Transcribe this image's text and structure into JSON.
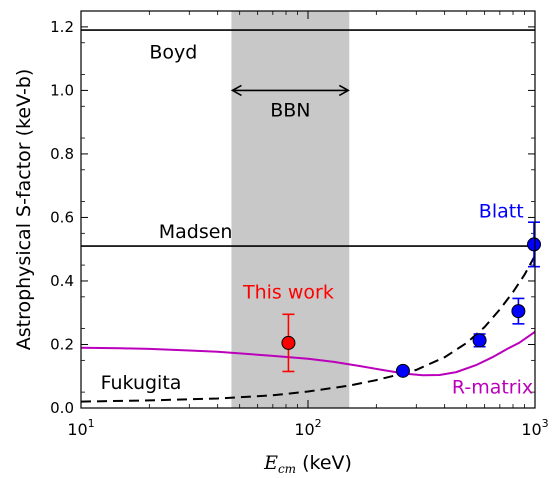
{
  "chart_data": {
    "type": "line",
    "xlabel_sym": "E",
    "xlabel_sub": "cm",
    "xlabel_unit": " (keV)",
    "ylabel": "Astrophysical S-factor (keV-b)",
    "xscale": "log",
    "xlim": [
      10,
      1000
    ],
    "ylim": [
      0,
      1.25
    ],
    "x_ticks": [
      10,
      100,
      1000
    ],
    "x_tick_labels": [
      {
        "base": "10",
        "exp": "1"
      },
      {
        "base": "10",
        "exp": "2"
      },
      {
        "base": "10",
        "exp": "3"
      }
    ],
    "y_ticks": [
      0.0,
      0.2,
      0.4,
      0.6,
      0.8,
      1.0,
      1.2
    ],
    "y_tick_labels": [
      "0.0",
      "0.2",
      "0.4",
      "0.6",
      "0.8",
      "1.0",
      "1.2"
    ],
    "shaded_band": {
      "label": "BBN",
      "x_range": [
        46,
        152
      ],
      "arrow_y": 1.0,
      "color": "#c8c8c8"
    },
    "horizontal_lines": [
      {
        "name": "Boyd",
        "y": 1.19,
        "label_x": 20,
        "label_y": 1.1
      },
      {
        "name": "Madsen",
        "y": 0.51,
        "label_x": 22,
        "label_y": 0.535
      }
    ],
    "series": [
      {
        "name": "R-matrix",
        "style": "solid",
        "color": "#bb00bb",
        "x": [
          10,
          15,
          20,
          30,
          40,
          50,
          70,
          100,
          130,
          170,
          220,
          270,
          320,
          380,
          450,
          550,
          650,
          750,
          850,
          1000
        ],
        "y": [
          0.19,
          0.188,
          0.186,
          0.181,
          0.177,
          0.172,
          0.164,
          0.155,
          0.145,
          0.132,
          0.118,
          0.108,
          0.103,
          0.104,
          0.113,
          0.135,
          0.16,
          0.185,
          0.205,
          0.24
        ]
      },
      {
        "name": "Fukugita",
        "style": "dashed",
        "color": "#000000",
        "x": [
          10,
          20,
          40,
          70,
          100,
          150,
          200,
          250,
          300,
          400,
          500,
          600,
          700,
          800,
          900,
          1000
        ],
        "y": [
          0.02,
          0.024,
          0.03,
          0.04,
          0.052,
          0.07,
          0.088,
          0.105,
          0.12,
          0.16,
          0.205,
          0.255,
          0.31,
          0.365,
          0.42,
          0.48
        ]
      },
      {
        "name": "This work",
        "style": "marker",
        "color": "#ff0000",
        "points": [
          {
            "x": 82,
            "y": 0.205,
            "err": 0.09
          }
        ]
      },
      {
        "name": "Blatt",
        "style": "marker",
        "color": "#0000ff",
        "points": [
          {
            "x": 262,
            "y": 0.117,
            "err": 0.0
          },
          {
            "x": 570,
            "y": 0.213,
            "err": 0.02
          },
          {
            "x": 845,
            "y": 0.305,
            "err": 0.04
          },
          {
            "x": 990,
            "y": 0.515,
            "err": 0.07
          }
        ]
      }
    ],
    "labels": [
      {
        "text": "This work",
        "x": 82,
        "y": 0.345,
        "color": "#ff0000",
        "anchor": "middle"
      },
      {
        "text": "Blatt",
        "x": 710,
        "y": 0.6,
        "color": "#0000ff",
        "anchor": "middle"
      },
      {
        "text": "R-matrix",
        "x": 650,
        "y": 0.045,
        "color": "#bb00bb",
        "anchor": "middle"
      },
      {
        "text": "Fukugita",
        "x": 12.2,
        "y": 0.06,
        "color": "#000000",
        "anchor": "start"
      }
    ]
  }
}
